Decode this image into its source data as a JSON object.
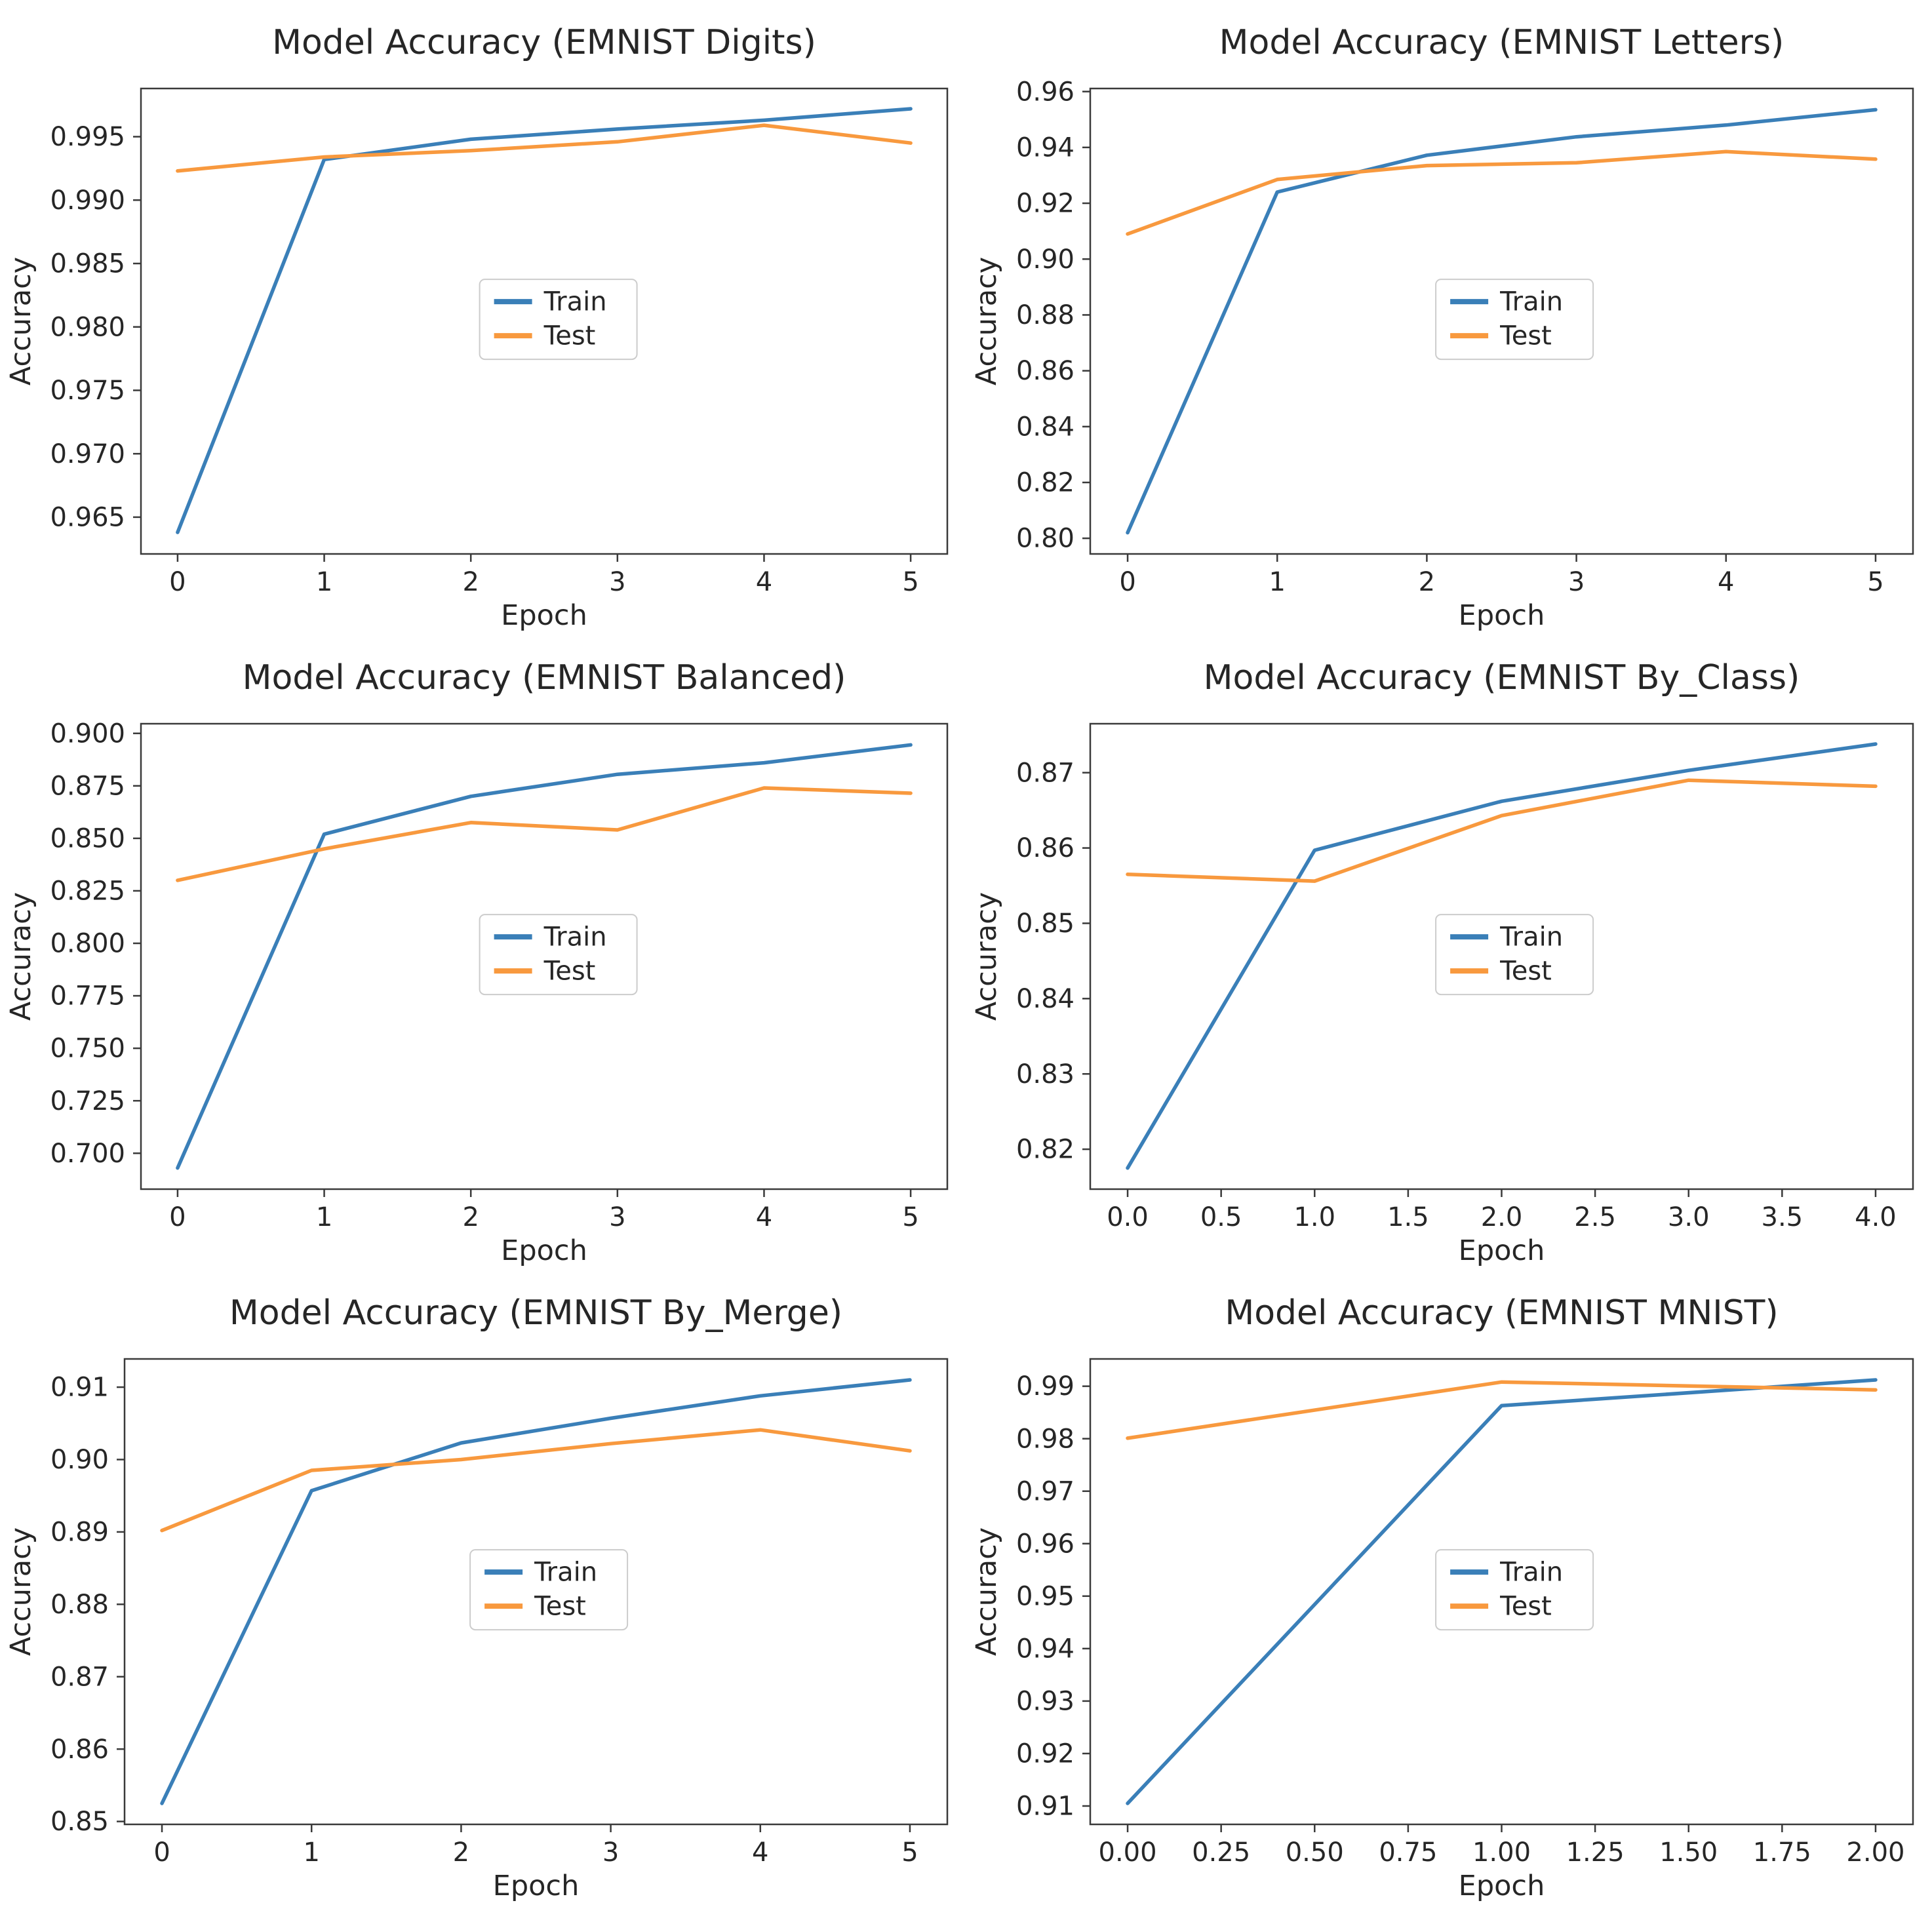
{
  "page": {
    "background": "#ffffff",
    "grid": "2 columns x 3 rows of line charts"
  },
  "styles": {
    "train_color": "#3a7fb8",
    "test_color": "#f8993e",
    "spine_color": "#3a3a3a",
    "tick_color": "#3a3a3a",
    "text_color": "#262626",
    "legend_bg": "#ffffff",
    "legend_border": "#cccccc"
  },
  "legend": {
    "train_label": "Train",
    "test_label": "Test"
  },
  "chart_data": [
    {
      "type": "line",
      "title": "Model Accuracy (EMNIST Digits)",
      "xlabel": "Epoch",
      "ylabel": "Accuracy",
      "x": [
        0,
        1,
        2,
        3,
        4,
        5
      ],
      "series": [
        {
          "name": "Train",
          "values": [
            0.9638,
            0.9932,
            0.9948,
            0.9956,
            0.9963,
            0.9972
          ]
        },
        {
          "name": "Test",
          "values": [
            0.9923,
            0.9934,
            0.9939,
            0.9946,
            0.9959,
            0.9945
          ]
        }
      ],
      "xticks": [
        0,
        1,
        2,
        3,
        4,
        5
      ],
      "xtick_labels": [
        "0",
        "1",
        "2",
        "3",
        "4",
        "5"
      ],
      "yticks": [
        0.965,
        0.97,
        0.975,
        0.98,
        0.985,
        0.99,
        0.995
      ],
      "ytick_labels": [
        "0.965",
        "0.970",
        "0.975",
        "0.980",
        "0.985",
        "0.990",
        "0.995"
      ],
      "xlim": [
        -0.25,
        5.25
      ],
      "ylim": [
        0.9621,
        0.9988
      ],
      "grid": false,
      "legend_position": "center"
    },
    {
      "type": "line",
      "title": "Model Accuracy (EMNIST Letters)",
      "xlabel": "Epoch",
      "ylabel": "Accuracy",
      "x": [
        0,
        1,
        2,
        3,
        4,
        5
      ],
      "series": [
        {
          "name": "Train",
          "values": [
            0.802,
            0.924,
            0.9372,
            0.9438,
            0.948,
            0.9535
          ]
        },
        {
          "name": "Test",
          "values": [
            0.909,
            0.9285,
            0.9335,
            0.9345,
            0.9385,
            0.9358
          ]
        }
      ],
      "xticks": [
        0,
        1,
        2,
        3,
        4,
        5
      ],
      "xtick_labels": [
        "0",
        "1",
        "2",
        "3",
        "4",
        "5"
      ],
      "yticks": [
        0.8,
        0.82,
        0.84,
        0.86,
        0.88,
        0.9,
        0.92,
        0.94,
        0.96
      ],
      "ytick_labels": [
        "0.80",
        "0.82",
        "0.84",
        "0.86",
        "0.88",
        "0.90",
        "0.92",
        "0.94",
        "0.96"
      ],
      "xlim": [
        -0.25,
        5.25
      ],
      "ylim": [
        0.7944,
        0.9611
      ],
      "grid": false,
      "legend_position": "center"
    },
    {
      "type": "line",
      "title": "Model Accuracy (EMNIST Balanced)",
      "xlabel": "Epoch",
      "ylabel": "Accuracy",
      "x": [
        0,
        1,
        2,
        3,
        4,
        5
      ],
      "series": [
        {
          "name": "Train",
          "values": [
            0.693,
            0.852,
            0.87,
            0.8805,
            0.886,
            0.8945
          ]
        },
        {
          "name": "Test",
          "values": [
            0.83,
            0.845,
            0.8575,
            0.854,
            0.874,
            0.8715
          ]
        }
      ],
      "xticks": [
        0,
        1,
        2,
        3,
        4,
        5
      ],
      "xtick_labels": [
        "0",
        "1",
        "2",
        "3",
        "4",
        "5"
      ],
      "yticks": [
        0.7,
        0.725,
        0.75,
        0.775,
        0.8,
        0.825,
        0.85,
        0.875,
        0.9
      ],
      "ytick_labels": [
        "0.700",
        "0.725",
        "0.750",
        "0.775",
        "0.800",
        "0.825",
        "0.850",
        "0.875",
        "0.900"
      ],
      "xlim": [
        -0.25,
        5.25
      ],
      "ylim": [
        0.6829,
        0.9046
      ],
      "grid": false,
      "legend_position": "center"
    },
    {
      "type": "line",
      "title": "Model Accuracy (EMNIST By_Class)",
      "xlabel": "Epoch",
      "ylabel": "Accuracy",
      "x": [
        0,
        1,
        2,
        3,
        4
      ],
      "series": [
        {
          "name": "Train",
          "values": [
            0.8175,
            0.8597,
            0.8662,
            0.8703,
            0.8738
          ]
        },
        {
          "name": "Test",
          "values": [
            0.8565,
            0.8556,
            0.8643,
            0.869,
            0.8682
          ]
        }
      ],
      "xticks": [
        0,
        0.5,
        1,
        1.5,
        2,
        2.5,
        3,
        3.5,
        4
      ],
      "xtick_labels": [
        "0.0",
        "0.5",
        "1.0",
        "1.5",
        "2.0",
        "2.5",
        "3.0",
        "3.5",
        "4.0"
      ],
      "yticks": [
        0.82,
        0.83,
        0.84,
        0.85,
        0.86,
        0.87
      ],
      "ytick_labels": [
        "0.82",
        "0.83",
        "0.84",
        "0.85",
        "0.86",
        "0.87"
      ],
      "xlim": [
        -0.2,
        4.2
      ],
      "ylim": [
        0.8147,
        0.8765
      ],
      "grid": false,
      "legend_position": "center"
    },
    {
      "type": "line",
      "title": "Model Accuracy (EMNIST By_Merge)",
      "xlabel": "Epoch",
      "ylabel": "Accuracy",
      "x": [
        0,
        1,
        2,
        3,
        4,
        5
      ],
      "series": [
        {
          "name": "Train",
          "values": [
            0.8525,
            0.8957,
            0.9023,
            0.9057,
            0.9088,
            0.911
          ]
        },
        {
          "name": "Test",
          "values": [
            0.8902,
            0.8985,
            0.9,
            0.9022,
            0.9041,
            0.9012
          ]
        }
      ],
      "xticks": [
        0,
        1,
        2,
        3,
        4,
        5
      ],
      "xtick_labels": [
        "0",
        "1",
        "2",
        "3",
        "4",
        "5"
      ],
      "yticks": [
        0.85,
        0.86,
        0.87,
        0.88,
        0.89,
        0.9,
        0.91
      ],
      "ytick_labels": [
        "0.85",
        "0.86",
        "0.87",
        "0.88",
        "0.89",
        "0.90",
        "0.91"
      ],
      "xlim": [
        -0.25,
        5.25
      ],
      "ylim": [
        0.8496,
        0.9139
      ],
      "grid": false,
      "legend_position": "center"
    },
    {
      "type": "line",
      "title": "Model Accuracy (EMNIST MNIST)",
      "xlabel": "Epoch",
      "ylabel": "Accuracy",
      "x": [
        0,
        1,
        2
      ],
      "series": [
        {
          "name": "Train",
          "values": [
            0.9105,
            0.9863,
            0.9912
          ]
        },
        {
          "name": "Test",
          "values": [
            0.9801,
            0.9908,
            0.9893
          ]
        }
      ],
      "xticks": [
        0,
        0.25,
        0.5,
        0.75,
        1,
        1.25,
        1.5,
        1.75,
        2
      ],
      "xtick_labels": [
        "0.00",
        "0.25",
        "0.50",
        "0.75",
        "1.00",
        "1.25",
        "1.50",
        "1.75",
        "2.00"
      ],
      "yticks": [
        0.91,
        0.92,
        0.93,
        0.94,
        0.95,
        0.96,
        0.97,
        0.98,
        0.99
      ],
      "ytick_labels": [
        "0.91",
        "0.92",
        "0.93",
        "0.94",
        "0.95",
        "0.96",
        "0.97",
        "0.98",
        "0.99"
      ],
      "xlim": [
        -0.1,
        2.1
      ],
      "ylim": [
        0.9065,
        0.9952
      ],
      "grid": false,
      "legend_position": "center"
    }
  ]
}
